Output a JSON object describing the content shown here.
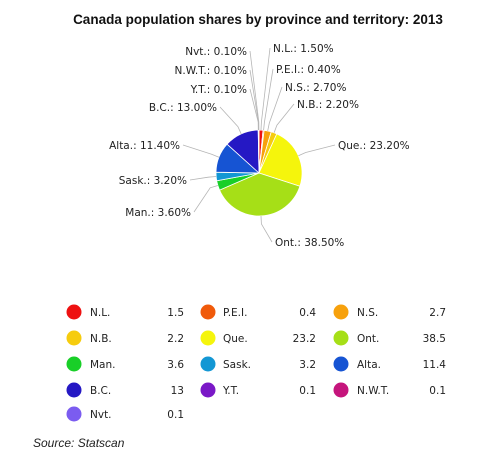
{
  "chart_data": {
    "type": "pie",
    "title": "Canada population shares by province and territory: 2013",
    "slices": [
      {
        "label": "N.L.",
        "value": 1.5,
        "slice_label": "N.L.: 1.50%",
        "color": "#ee1111"
      },
      {
        "label": "P.E.I.",
        "value": 0.4,
        "slice_label": "P.E.I.: 0.40%",
        "color": "#f05a0a"
      },
      {
        "label": "N.S.",
        "value": 2.7,
        "slice_label": "N.S.: 2.70%",
        "color": "#f7a10c"
      },
      {
        "label": "N.B.",
        "value": 2.2,
        "slice_label": "N.B.: 2.20%",
        "color": "#f6cc0e"
      },
      {
        "label": "Que.",
        "value": 23.2,
        "slice_label": "Que.: 23.20%",
        "color": "#f5f50c"
      },
      {
        "label": "Ont.",
        "value": 38.5,
        "slice_label": "Ont.: 38.50%",
        "color": "#a6df17"
      },
      {
        "label": "Man.",
        "value": 3.6,
        "slice_label": "Man.: 3.60%",
        "color": "#19cf28"
      },
      {
        "label": "Sask.",
        "value": 3.2,
        "slice_label": "Sask.: 3.20%",
        "color": "#1397d4"
      },
      {
        "label": "Alta.",
        "value": 11.4,
        "slice_label": "Alta.: 11.40%",
        "color": "#1654d3"
      },
      {
        "label": "B.C.",
        "value": 13,
        "slice_label": "B.C.: 13.00%",
        "color": "#2518c4"
      },
      {
        "label": "Y.T.",
        "value": 0.1,
        "slice_label": "Y.T.: 0.10%",
        "color": "#7a18c7"
      },
      {
        "label": "N.W.T.",
        "value": 0.1,
        "slice_label": "N.W.T.: 0.10%",
        "color": "#c5157c"
      },
      {
        "label": "Nvt.",
        "value": 0.1,
        "slice_label": "Nvt.: 0.10%",
        "color": "#7b5cf0"
      }
    ]
  },
  "source": "Source: Statscan"
}
